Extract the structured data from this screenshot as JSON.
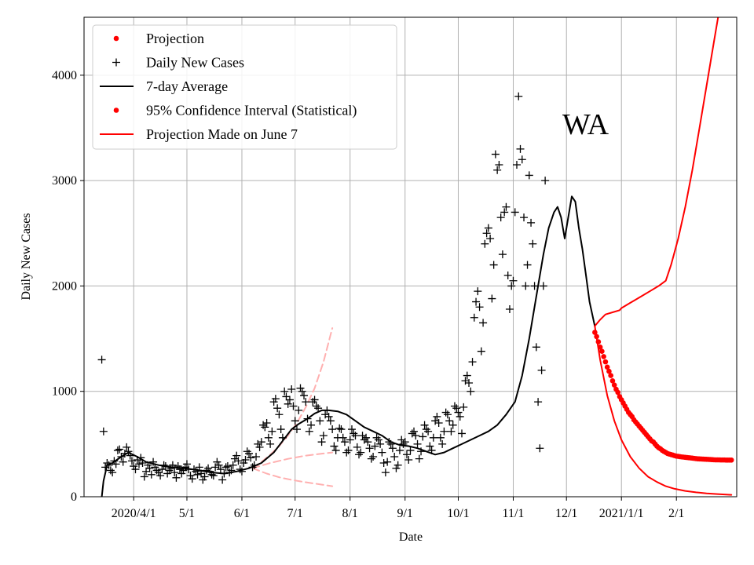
{
  "chart_data": {
    "type": "line",
    "title": "WA",
    "xlabel": "Date",
    "ylabel": "Daily New Cases",
    "xlim": [
      "2020-03-04",
      "2021-03-07"
    ],
    "ylim": [
      0,
      4550
    ],
    "grid": true,
    "legend_position": "top-left",
    "x_ticks": [
      {
        "date": "2020-04-01",
        "label": "2020/4/1"
      },
      {
        "date": "2020-05-01",
        "label": "5/1"
      },
      {
        "date": "2020-06-01",
        "label": "6/1"
      },
      {
        "date": "2020-07-01",
        "label": "7/1"
      },
      {
        "date": "2020-08-01",
        "label": "8/1"
      },
      {
        "date": "2020-09-01",
        "label": "9/1"
      },
      {
        "date": "2020-10-01",
        "label": "10/1"
      },
      {
        "date": "2020-11-01",
        "label": "11/1"
      },
      {
        "date": "2020-12-01",
        "label": "12/1"
      },
      {
        "date": "2021-01-01",
        "label": "2021/1/1"
      },
      {
        "date": "2021-02-01",
        "label": "2/1"
      }
    ],
    "y_ticks": [
      {
        "value": 0,
        "label": "0"
      },
      {
        "value": 1000,
        "label": "1000"
      },
      {
        "value": 2000,
        "label": "2000"
      },
      {
        "value": 3000,
        "label": "3000"
      },
      {
        "value": 4000,
        "label": "4000"
      }
    ],
    "legend": [
      {
        "label": "Projection",
        "style": "dot",
        "color": "#ff0000"
      },
      {
        "label": "Daily New Cases",
        "style": "plus",
        "color": "#000000"
      },
      {
        "label": "7-day Average",
        "style": "line",
        "color": "#000000"
      },
      {
        "label": "95% Confidence Interval (Statistical)",
        "style": "dot",
        "color": "#ff0000"
      },
      {
        "label": "Projection Made on June 7",
        "style": "line",
        "color": "#ff0000"
      }
    ],
    "series": [
      {
        "name": "Daily New Cases",
        "style": "plus",
        "color": "#000000",
        "start_date": "2020-03-14",
        "values": [
          1300,
          620,
          280,
          320,
          300,
          250,
          230,
          340,
          310,
          440,
          450,
          380,
          330,
          410,
          470,
          430,
          390,
          340,
          290,
          260,
          350,
          310,
          370,
          320,
          190,
          240,
          300,
          270,
          210,
          330,
          280,
          250,
          230,
          200,
          260,
          300,
          290,
          220,
          250,
          270,
          300,
          230,
          180,
          290,
          260,
          220,
          250,
          280,
          310,
          260,
          200,
          170,
          260,
          240,
          210,
          280,
          220,
          160,
          190,
          250,
          270,
          240,
          210,
          200,
          280,
          330,
          300,
          260,
          160,
          220,
          280,
          290,
          230,
          250,
          300,
          360,
          390,
          340,
          260,
          240,
          320,
          350,
          430,
          410,
          370,
          280,
          300,
          380,
          500,
          470,
          520,
          680,
          660,
          700,
          560,
          500,
          620,
          900,
          930,
          840,
          780,
          640,
          560,
          1000,
          950,
          880,
          920,
          1020,
          860,
          720,
          640,
          820,
          1030,
          1000,
          960,
          900,
          740,
          620,
          680,
          900,
          920,
          860,
          840,
          720,
          520,
          580,
          780,
          820,
          760,
          720,
          640,
          480,
          440,
          560,
          650,
          640,
          560,
          520,
          420,
          440,
          540,
          640,
          600,
          580,
          470,
          400,
          420,
          580,
          540,
          560,
          520,
          460,
          360,
          380,
          480,
          560,
          540,
          500,
          420,
          320,
          230,
          330,
          520,
          500,
          460,
          380,
          270,
          300,
          440,
          540,
          500,
          520,
          400,
          350,
          440,
          600,
          620,
          580,
          500,
          360,
          430,
          570,
          680,
          640,
          620,
          480,
          440,
          560,
          720,
          760,
          700,
          560,
          500,
          620,
          800,
          780,
          720,
          620,
          680,
          860,
          840,
          800,
          760,
          600,
          850,
          1100,
          1150,
          1080,
          1000,
          1280,
          1700,
          1850,
          1950,
          1800,
          1380,
          1650,
          2400,
          2500,
          2550,
          2450,
          1880,
          2200,
          3250,
          3100,
          3150,
          2650,
          2300,
          2700,
          2750,
          2100,
          1780,
          2000,
          2050,
          2700,
          3150,
          3800,
          3300,
          3200,
          2650,
          2000,
          2200,
          3050,
          2600,
          2400,
          2000,
          1420,
          900,
          460,
          1200,
          2000,
          3000
        ]
      },
      {
        "name": "7-day Average",
        "style": "line",
        "color": "#000000",
        "dates": [
          "2020-03-14",
          "2020-03-15",
          "2020-03-17",
          "2020-03-20",
          "2020-03-25",
          "2020-03-29",
          "2020-04-03",
          "2020-04-08",
          "2020-04-15",
          "2020-04-22",
          "2020-04-30",
          "2020-05-08",
          "2020-05-15",
          "2020-05-22",
          "2020-05-29",
          "2020-06-05",
          "2020-06-12",
          "2020-06-19",
          "2020-06-24",
          "2020-06-29",
          "2020-07-03",
          "2020-07-08",
          "2020-07-12",
          "2020-07-16",
          "2020-07-20",
          "2020-07-25",
          "2020-07-30",
          "2020-08-04",
          "2020-08-09",
          "2020-08-14",
          "2020-08-19",
          "2020-08-24",
          "2020-08-29",
          "2020-09-03",
          "2020-09-08",
          "2020-09-13",
          "2020-09-18",
          "2020-09-23",
          "2020-09-28",
          "2020-10-03",
          "2020-10-08",
          "2020-10-13",
          "2020-10-18",
          "2020-10-23",
          "2020-10-28",
          "2020-11-02",
          "2020-11-06",
          "2020-11-10",
          "2020-11-14",
          "2020-11-18",
          "2020-11-21",
          "2020-11-24",
          "2020-11-26",
          "2020-11-28",
          "2020-11-30",
          "2020-12-02",
          "2020-12-04",
          "2020-12-06",
          "2020-12-08",
          "2020-12-10",
          "2020-12-12",
          "2020-12-14",
          "2020-12-17"
        ],
        "values": [
          0,
          150,
          300,
          320,
          380,
          420,
          380,
          330,
          300,
          280,
          270,
          250,
          230,
          220,
          240,
          270,
          320,
          420,
          530,
          640,
          690,
          740,
          790,
          820,
          820,
          810,
          780,
          720,
          660,
          620,
          580,
          520,
          490,
          480,
          460,
          430,
          400,
          420,
          460,
          500,
          540,
          580,
          620,
          680,
          780,
          900,
          1150,
          1500,
          1900,
          2300,
          2550,
          2700,
          2750,
          2650,
          2450,
          2650,
          2850,
          2800,
          2550,
          2350,
          2100,
          1850,
          1620
        ]
      },
      {
        "name": "Projection",
        "style": "dot",
        "color": "#ff0000",
        "dates": [
          "2020-12-17",
          "2020-12-18",
          "2020-12-19",
          "2020-12-20",
          "2020-12-21",
          "2020-12-22",
          "2020-12-23",
          "2020-12-24",
          "2020-12-25",
          "2020-12-26",
          "2020-12-27",
          "2020-12-28",
          "2020-12-29",
          "2020-12-30",
          "2020-12-31",
          "2021-01-01",
          "2021-01-02",
          "2021-01-03",
          "2021-01-04",
          "2021-01-05",
          "2021-01-06",
          "2021-01-07",
          "2021-01-08",
          "2021-01-09",
          "2021-01-10",
          "2021-01-11",
          "2021-01-12",
          "2021-01-13",
          "2021-01-14",
          "2021-01-15",
          "2021-01-16",
          "2021-01-17",
          "2021-01-18",
          "2021-01-19",
          "2021-01-20",
          "2021-01-21",
          "2021-01-22",
          "2021-01-23",
          "2021-01-24",
          "2021-01-25",
          "2021-01-26",
          "2021-01-27",
          "2021-01-28",
          "2021-01-29",
          "2021-01-30",
          "2021-01-31",
          "2021-02-01",
          "2021-02-02",
          "2021-02-03",
          "2021-02-04",
          "2021-02-05",
          "2021-02-06",
          "2021-02-07",
          "2021-02-08",
          "2021-02-09",
          "2021-02-10",
          "2021-02-11",
          "2021-02-12",
          "2021-02-13",
          "2021-02-14",
          "2021-02-15",
          "2021-02-16",
          "2021-02-17",
          "2021-02-18",
          "2021-02-19",
          "2021-02-20",
          "2021-02-21",
          "2021-02-22",
          "2021-02-23",
          "2021-02-24",
          "2021-02-25",
          "2021-02-26",
          "2021-02-27",
          "2021-02-28",
          "2021-03-01",
          "2021-03-02",
          "2021-03-03",
          "2021-03-04"
        ],
        "values": [
          1560,
          1520,
          1470,
          1420,
          1380,
          1330,
          1280,
          1230,
          1190,
          1150,
          1100,
          1060,
          1020,
          990,
          950,
          920,
          890,
          860,
          830,
          800,
          780,
          760,
          730,
          710,
          690,
          670,
          650,
          630,
          610,
          590,
          570,
          550,
          530,
          520,
          500,
          480,
          465,
          455,
          440,
          430,
          420,
          410,
          405,
          400,
          395,
          390,
          385,
          383,
          380,
          378,
          376,
          374,
          372,
          370,
          368,
          366,
          364,
          362,
          360,
          359,
          358,
          357,
          356,
          355,
          354,
          353,
          352,
          351,
          350,
          350,
          350,
          349,
          349,
          349,
          348,
          348,
          348,
          348
        ]
      },
      {
        "name": "95% Confidence Interval (Statistical) upper",
        "style": "line",
        "color": "#ff0000",
        "dates": [
          "2020-12-17",
          "2020-12-20",
          "2020-12-23",
          "2020-12-27",
          "2020-12-31",
          "2021-01-01",
          "2021-01-06",
          "2021-01-12",
          "2021-01-18",
          "2021-01-22",
          "2021-01-26",
          "2021-01-29",
          "2021-02-02",
          "2021-02-06",
          "2021-02-10",
          "2021-02-14",
          "2021-02-18",
          "2021-02-22",
          "2021-02-25"
        ],
        "values": [
          1620,
          1680,
          1730,
          1750,
          1770,
          1790,
          1840,
          1900,
          1960,
          2000,
          2050,
          2200,
          2450,
          2750,
          3100,
          3500,
          3900,
          4300,
          4600
        ]
      },
      {
        "name": "95% Confidence Interval (Statistical) lower",
        "style": "line",
        "color": "#ff0000",
        "dates": [
          "2020-12-17",
          "2020-12-20",
          "2020-12-24",
          "2020-12-28",
          "2021-01-01",
          "2021-01-06",
          "2021-01-11",
          "2021-01-16",
          "2021-01-21",
          "2021-01-26",
          "2021-01-31",
          "2021-02-06",
          "2021-02-12",
          "2021-02-18",
          "2021-02-24",
          "2021-03-01",
          "2021-03-04"
        ],
        "values": [
          1620,
          1300,
          960,
          720,
          540,
          380,
          270,
          190,
          140,
          100,
          75,
          55,
          42,
          32,
          25,
          20,
          18
        ]
      },
      {
        "name": "Projection Made on June 7",
        "style": "dashed",
        "color": "#ffb0b0",
        "dates": [
          "2020-06-07",
          "2020-06-17",
          "2020-06-27",
          "2020-07-07",
          "2020-07-17",
          "2020-07-22"
        ],
        "values": [
          270,
          320,
          360,
          390,
          410,
          420
        ]
      },
      {
        "name": "Projection Made on June 7 upper",
        "style": "dashed",
        "color": "#ffb0b0",
        "dates": [
          "2020-06-07",
          "2020-06-12",
          "2020-06-17",
          "2020-06-22",
          "2020-06-27",
          "2020-07-02",
          "2020-07-07",
          "2020-07-12",
          "2020-07-17",
          "2020-07-22"
        ],
        "values": [
          270,
          330,
          400,
          480,
          580,
          700,
          850,
          1030,
          1280,
          1600
        ]
      },
      {
        "name": "Projection Made on June 7 lower",
        "style": "dashed",
        "color": "#ffb0b0",
        "dates": [
          "2020-06-07",
          "2020-06-15",
          "2020-06-22",
          "2020-06-29",
          "2020-07-06",
          "2020-07-14",
          "2020-07-22"
        ],
        "values": [
          270,
          220,
          185,
          160,
          140,
          120,
          100
        ]
      }
    ]
  }
}
